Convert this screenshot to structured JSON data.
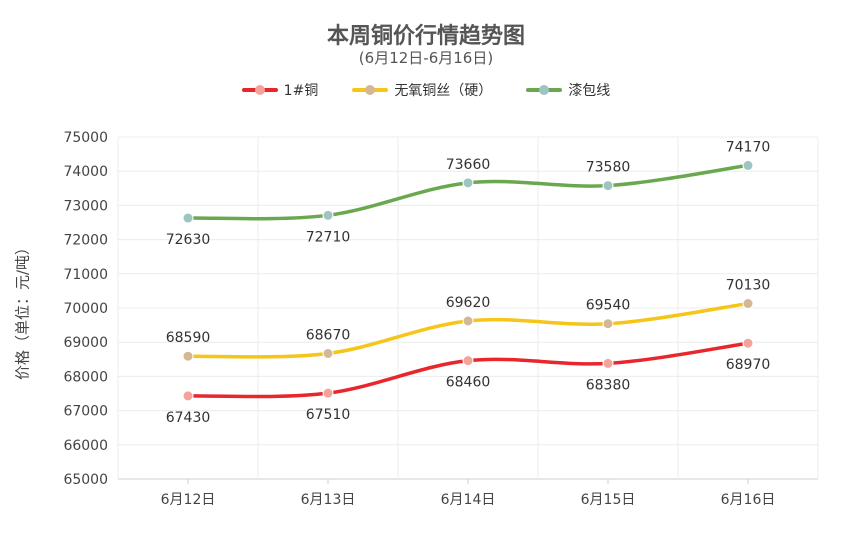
{
  "chart_data": {
    "type": "line",
    "title": "本周铜价行情趋势图",
    "subtitle": "(6月12日-6月16日)",
    "ylabel": "价格（单位：元/吨）",
    "xlabel": "",
    "categories": [
      "6月12日",
      "6月13日",
      "6月14日",
      "6月15日",
      "6月16日"
    ],
    "ylim": [
      65000,
      75000
    ],
    "yticks": [
      65000,
      66000,
      67000,
      68000,
      69000,
      70000,
      71000,
      72000,
      73000,
      74000,
      75000
    ],
    "grid": true,
    "legend_position": "top",
    "series": [
      {
        "name": "1#铜",
        "values": [
          67430,
          67510,
          68460,
          68380,
          68970
        ],
        "color": "#e8262b",
        "marker_color": "#f4a39a",
        "label_side": [
          "below",
          "below",
          "below",
          "below",
          "below"
        ]
      },
      {
        "name": "无氧铜丝（硬）",
        "values": [
          68590,
          68670,
          69620,
          69540,
          70130
        ],
        "color": "#f5c518",
        "marker_color": "#d4b896",
        "label_side": [
          "above",
          "above",
          "above",
          "above",
          "above"
        ]
      },
      {
        "name": "漆包线",
        "values": [
          72630,
          72710,
          73660,
          73580,
          74170
        ],
        "color": "#6aa84f",
        "marker_color": "#9fc5c0",
        "label_side": [
          "below",
          "below",
          "above",
          "above",
          "above"
        ]
      }
    ]
  }
}
